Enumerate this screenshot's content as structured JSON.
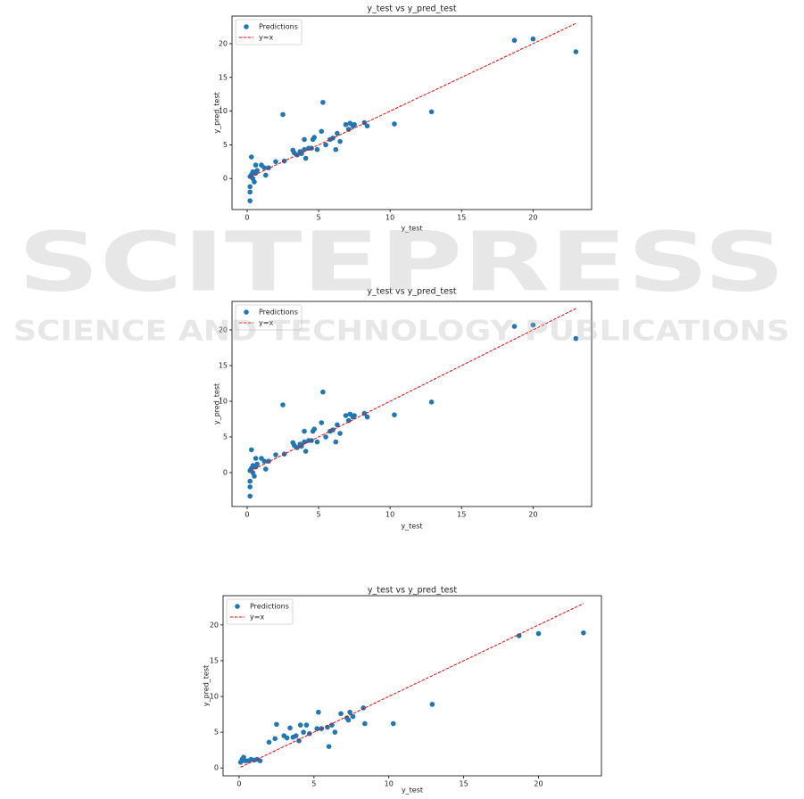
{
  "chart_data": [
    {
      "type": "scatter",
      "title": "y_test vs y_pred_test",
      "x_label": "y_test",
      "y_label": "y_pred_test",
      "xlim": [
        -1.06,
        24.1
      ],
      "ylim": [
        -4.6,
        24.1
      ],
      "xticks": [
        0,
        5,
        10,
        15,
        20
      ],
      "yticks": [
        0,
        5,
        10,
        15,
        20
      ],
      "legend": "upper left",
      "series": [
        {
          "name": "Predictions",
          "color": "#1f77b4",
          "kind": "scatter",
          "x": [
            0.2,
            0.2,
            0.2,
            0.2,
            0.3,
            0.3,
            0.4,
            0.4,
            0.5,
            0.6,
            0.6,
            0.7,
            1.0,
            1.2,
            1.3,
            1.5,
            2.0,
            2.5,
            2.6,
            3.2,
            3.3,
            3.5,
            3.7,
            3.8,
            4.0,
            4.0,
            4.1,
            4.3,
            4.5,
            4.6,
            4.7,
            4.9,
            5.2,
            5.3,
            5.5,
            5.8,
            6.0,
            6.2,
            6.3,
            6.5,
            6.9,
            7.1,
            7.2,
            7.4,
            7.5,
            8.2,
            8.4,
            10.3,
            12.9,
            18.7,
            20.0,
            23.0
          ],
          "values": [
            -3.3,
            -2.0,
            -1.2,
            0.3,
            0.6,
            3.2,
            0.0,
            1.0,
            -0.5,
            0.8,
            2.0,
            1.2,
            2.0,
            1.6,
            0.5,
            1.6,
            2.5,
            9.5,
            2.6,
            4.2,
            3.8,
            3.5,
            4.0,
            3.7,
            4.3,
            5.8,
            3.0,
            4.5,
            4.5,
            5.8,
            6.1,
            4.3,
            7.0,
            11.3,
            5.0,
            5.8,
            6.0,
            4.3,
            6.7,
            5.5,
            8.0,
            7.3,
            8.2,
            7.8,
            8.0,
            8.3,
            7.8,
            8.1,
            9.9,
            20.5,
            20.7,
            18.8
          ]
        },
        {
          "name": "y=x",
          "color": "#ff0000",
          "kind": "line",
          "linestyle": "dashed",
          "x": [
            0.2,
            23.0
          ],
          "values": [
            0.2,
            23.0
          ]
        }
      ]
    },
    {
      "type": "scatter",
      "title": "y_test vs y_pred_test",
      "x_label": "y_test",
      "y_label": "y_pred_test",
      "xlim": [
        -1.06,
        24.1
      ],
      "ylim": [
        -4.75,
        24.0
      ],
      "xticks": [
        0,
        5,
        10,
        15,
        20
      ],
      "yticks": [
        0,
        5,
        10,
        15,
        20
      ],
      "legend": "upper left",
      "series": [
        {
          "name": "Predictions",
          "color": "#1f77b4",
          "kind": "scatter",
          "x": [
            0.2,
            0.2,
            0.2,
            0.2,
            0.3,
            0.3,
            0.4,
            0.4,
            0.5,
            0.6,
            0.6,
            0.7,
            1.0,
            1.2,
            1.3,
            1.5,
            2.0,
            2.5,
            2.6,
            3.2,
            3.3,
            3.5,
            3.7,
            3.8,
            4.0,
            4.0,
            4.1,
            4.3,
            4.5,
            4.6,
            4.7,
            4.9,
            5.2,
            5.3,
            5.5,
            5.8,
            6.0,
            6.2,
            6.3,
            6.5,
            6.9,
            7.1,
            7.2,
            7.4,
            7.5,
            8.2,
            8.4,
            10.3,
            12.9,
            18.7,
            20.0,
            23.0
          ],
          "values": [
            -3.3,
            -2.0,
            -1.2,
            0.3,
            0.6,
            3.2,
            0.0,
            1.0,
            -0.5,
            0.8,
            2.0,
            1.2,
            2.0,
            1.6,
            0.5,
            1.6,
            2.5,
            9.5,
            2.6,
            4.2,
            3.8,
            3.5,
            4.0,
            3.7,
            4.3,
            5.8,
            3.0,
            4.5,
            4.5,
            5.8,
            6.1,
            4.3,
            7.0,
            11.3,
            5.0,
            5.8,
            6.0,
            4.3,
            6.7,
            5.5,
            8.0,
            7.3,
            8.2,
            7.8,
            8.0,
            8.3,
            7.8,
            8.1,
            9.9,
            20.5,
            20.7,
            18.8
          ]
        },
        {
          "name": "y=x",
          "color": "#ff0000",
          "kind": "line",
          "linestyle": "dashed",
          "x": [
            0.2,
            23.0
          ],
          "values": [
            0.2,
            23.0
          ]
        }
      ]
    },
    {
      "type": "scatter",
      "title": "y_test vs y_pred_test",
      "x_label": "y_test",
      "y_label": "y_pred_test",
      "xlim": [
        -1.07,
        24.2
      ],
      "ylim": [
        -1.1,
        24.1
      ],
      "xticks": [
        0,
        5,
        10,
        15,
        20
      ],
      "yticks": [
        0,
        5,
        10,
        15,
        20
      ],
      "legend": "upper left",
      "series": [
        {
          "name": "Predictions",
          "color": "#1f77b4",
          "kind": "scatter",
          "x": [
            0.1,
            0.2,
            0.3,
            0.4,
            0.6,
            0.8,
            1.0,
            1.2,
            1.4,
            2.0,
            2.4,
            2.5,
            3.0,
            3.2,
            3.4,
            3.6,
            3.8,
            4.0,
            4.1,
            4.3,
            4.5,
            4.7,
            5.2,
            5.3,
            5.5,
            5.9,
            6.0,
            6.2,
            6.4,
            6.8,
            7.2,
            7.3,
            7.4,
            7.6,
            8.3,
            8.4,
            10.3,
            12.9,
            18.7,
            20.0,
            23.0
          ],
          "values": [
            0.8,
            1.2,
            1.5,
            1.0,
            1.0,
            1.2,
            1.1,
            1.2,
            1.0,
            3.6,
            4.1,
            6.1,
            4.5,
            4.2,
            5.6,
            4.3,
            4.5,
            3.8,
            6.0,
            5.0,
            6.0,
            4.8,
            5.5,
            7.8,
            5.5,
            5.7,
            3.0,
            6.0,
            5.0,
            7.6,
            7.0,
            6.7,
            7.8,
            7.2,
            8.4,
            6.2,
            6.2,
            8.9,
            18.5,
            18.8,
            18.9
          ]
        },
        {
          "name": "y=x",
          "color": "#ff0000",
          "kind": "line",
          "linestyle": "dashed",
          "x": [
            0.1,
            23.0
          ],
          "values": [
            0.1,
            23.0
          ]
        }
      ]
    }
  ],
  "watermark": {
    "title": "SCITEPRESS",
    "subtitle": "SCIENCE AND TECHNOLOGY PUBLICATIONS"
  }
}
